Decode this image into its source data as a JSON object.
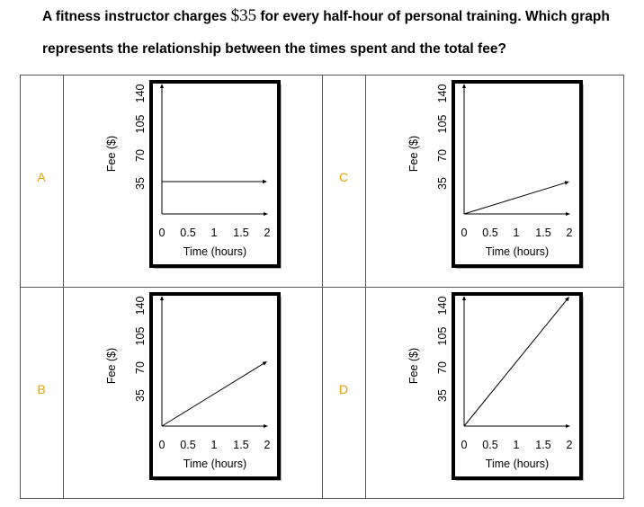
{
  "question": {
    "line1_before": "A fitness instructor charges ",
    "line1_money": "$35",
    "line1_after": " for every half-hour of personal training. Which graph",
    "line2": "represents the relationship between the times spent and the total fee?"
  },
  "options": [
    {
      "letter": "A",
      "chart_data": {
        "type": "line",
        "xlabel": "Time (hours)",
        "ylabel": "Fee ($)",
        "x_ticks": [
          "0",
          "0.5",
          "1",
          "1.5",
          "2"
        ],
        "y_ticks": [
          "35",
          "70",
          "105",
          "140"
        ],
        "xlim": [
          0,
          2
        ],
        "ylim": [
          0,
          140
        ],
        "series": [
          {
            "x": [
              0,
              2
            ],
            "y": [
              35,
              35
            ]
          }
        ]
      }
    },
    {
      "letter": "B",
      "chart_data": {
        "type": "line",
        "xlabel": "Time (hours)",
        "ylabel": "Fee ($)",
        "x_ticks": [
          "0",
          "0.5",
          "1",
          "1.5",
          "2"
        ],
        "y_ticks": [
          "35",
          "70",
          "105",
          "140"
        ],
        "xlim": [
          0,
          2
        ],
        "ylim": [
          0,
          140
        ],
        "series": [
          {
            "x": [
              0,
              2
            ],
            "y": [
              0,
              70
            ]
          }
        ]
      }
    },
    {
      "letter": "C",
      "chart_data": {
        "type": "line",
        "xlabel": "Time (hours)",
        "ylabel": "Fee ($)",
        "x_ticks": [
          "0",
          "0.5",
          "1",
          "1.5",
          "2"
        ],
        "y_ticks": [
          "35",
          "70",
          "105",
          "140"
        ],
        "xlim": [
          0,
          2
        ],
        "ylim": [
          0,
          140
        ],
        "series": [
          {
            "x": [
              0,
              2
            ],
            "y": [
              0,
              35
            ]
          }
        ]
      }
    },
    {
      "letter": "D",
      "chart_data": {
        "type": "line",
        "xlabel": "Time (hours)",
        "ylabel": "Fee ($)",
        "x_ticks": [
          "0",
          "0.5",
          "1",
          "1.5",
          "2"
        ],
        "y_ticks": [
          "35",
          "70",
          "105",
          "140"
        ],
        "xlim": [
          0,
          2
        ],
        "ylim": [
          0,
          140
        ],
        "series": [
          {
            "x": [
              0,
              2
            ],
            "y": [
              0,
              140
            ]
          }
        ]
      }
    }
  ]
}
